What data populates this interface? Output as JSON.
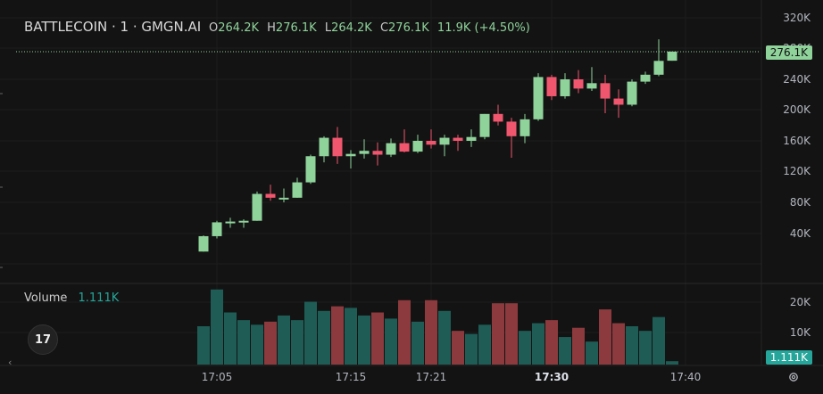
{
  "legend": {
    "symbol": "BATTLECOIN · 1 · GMGN.AI",
    "open_label": "O",
    "open": "264.2K",
    "high_label": "H",
    "high": "276.1K",
    "low_label": "L",
    "low": "264.2K",
    "close_label": "C",
    "close": "276.1K",
    "change": "11.9K (+4.50%)"
  },
  "volume_legend": {
    "name": "Volume",
    "value": "1.111K"
  },
  "price_axis": [
    "320K",
    "280K",
    "240K",
    "200K",
    "160K",
    "120K",
    "80K",
    "40K"
  ],
  "volume_axis": [
    "20K",
    "10K"
  ],
  "time_axis": [
    "17:05",
    "17:15",
    "17:21",
    "17:30",
    "17:40"
  ],
  "last_price_tag": "276.1K",
  "last_volume_tag": "1.111K",
  "logo_text": "17",
  "icons": {
    "settings": "gear-icon",
    "logo": "tradingview-logo-icon",
    "collapse": "chevron-left-icon"
  },
  "colors": {
    "up": "#8fd39b",
    "down": "#f0566e",
    "vol_up": "#1e5c55",
    "vol_down": "#8c3a3d",
    "background": "#131313"
  },
  "chart_data": {
    "type": "candlestick",
    "price_range": [
      0,
      330000
    ],
    "volume_range": [
      0,
      25000
    ],
    "candles": [
      {
        "o": 16000,
        "h": 37000,
        "l": 16000,
        "c": 36000,
        "v": 12500
      },
      {
        "o": 36000,
        "h": 56000,
        "l": 33000,
        "c": 54000,
        "v": 24500
      },
      {
        "o": 54000,
        "h": 60000,
        "l": 47000,
        "c": 55000,
        "v": 17000
      },
      {
        "o": 55000,
        "h": 58000,
        "l": 47000,
        "c": 56000,
        "v": 14500
      },
      {
        "o": 56000,
        "h": 94000,
        "l": 56000,
        "c": 91000,
        "v": 13000
      },
      {
        "o": 91000,
        "h": 103000,
        "l": 82000,
        "c": 86000,
        "v": 14000
      },
      {
        "o": 86000,
        "h": 98000,
        "l": 80000,
        "c": 86000,
        "v": 16000
      },
      {
        "o": 86000,
        "h": 112000,
        "l": 86000,
        "c": 106000,
        "v": 14500
      },
      {
        "o": 106000,
        "h": 142000,
        "l": 104000,
        "c": 140000,
        "v": 20500
      },
      {
        "o": 140000,
        "h": 166000,
        "l": 132000,
        "c": 164000,
        "v": 17500
      },
      {
        "o": 164000,
        "h": 178000,
        "l": 130000,
        "c": 140000,
        "v": 19000
      },
      {
        "o": 140000,
        "h": 148000,
        "l": 124000,
        "c": 143000,
        "v": 18500
      },
      {
        "o": 143000,
        "h": 162000,
        "l": 137000,
        "c": 147000,
        "v": 16000
      },
      {
        "o": 147000,
        "h": 158000,
        "l": 128000,
        "c": 142000,
        "v": 17000
      },
      {
        "o": 142000,
        "h": 163000,
        "l": 139000,
        "c": 157000,
        "v": 15000
      },
      {
        "o": 157000,
        "h": 175000,
        "l": 145000,
        "c": 146000,
        "v": 21000
      },
      {
        "o": 146000,
        "h": 168000,
        "l": 144000,
        "c": 160000,
        "v": 14000
      },
      {
        "o": 160000,
        "h": 175000,
        "l": 150000,
        "c": 155000,
        "v": 21000
      },
      {
        "o": 155000,
        "h": 168000,
        "l": 140000,
        "c": 164000,
        "v": 17500
      },
      {
        "o": 164000,
        "h": 168000,
        "l": 147000,
        "c": 160000,
        "v": 11000
      },
      {
        "o": 160000,
        "h": 175000,
        "l": 152000,
        "c": 165000,
        "v": 10000
      },
      {
        "o": 165000,
        "h": 195000,
        "l": 162000,
        "c": 195000,
        "v": 13000
      },
      {
        "o": 195000,
        "h": 207000,
        "l": 180000,
        "c": 185000,
        "v": 20000
      },
      {
        "o": 185000,
        "h": 190000,
        "l": 138000,
        "c": 166000,
        "v": 20000
      },
      {
        "o": 166000,
        "h": 195000,
        "l": 157000,
        "c": 188000,
        "v": 11000
      },
      {
        "o": 188000,
        "h": 248000,
        "l": 186000,
        "c": 243000,
        "v": 13500
      },
      {
        "o": 243000,
        "h": 246000,
        "l": 213000,
        "c": 218000,
        "v": 14500
      },
      {
        "o": 218000,
        "h": 248000,
        "l": 215000,
        "c": 240000,
        "v": 9000
      },
      {
        "o": 240000,
        "h": 252000,
        "l": 222000,
        "c": 228000,
        "v": 12000
      },
      {
        "o": 228000,
        "h": 256000,
        "l": 225000,
        "c": 235000,
        "v": 7500
      },
      {
        "o": 235000,
        "h": 246000,
        "l": 196000,
        "c": 215000,
        "v": 18000
      },
      {
        "o": 215000,
        "h": 227000,
        "l": 190000,
        "c": 207000,
        "v": 13500
      },
      {
        "o": 207000,
        "h": 240000,
        "l": 205000,
        "c": 237000,
        "v": 12500
      },
      {
        "o": 237000,
        "h": 250000,
        "l": 234000,
        "c": 246000,
        "v": 11000
      },
      {
        "o": 246000,
        "h": 292000,
        "l": 244000,
        "c": 264000,
        "v": 15500
      },
      {
        "o": 264200,
        "h": 276100,
        "l": 264200,
        "c": 276100,
        "v": 1111
      }
    ]
  }
}
